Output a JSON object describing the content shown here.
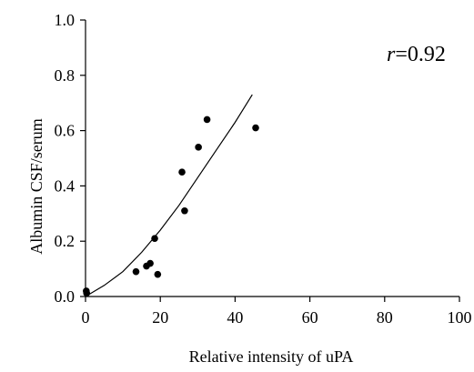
{
  "chart_data": {
    "type": "scatter",
    "xlabel": "Relative intensity of uPA",
    "ylabel": "Albumin CSF/serum",
    "xlim": [
      0,
      100
    ],
    "ylim": [
      0,
      1.0
    ],
    "x_ticks": [
      "0",
      "20",
      "40",
      "60",
      "80",
      "100"
    ],
    "y_ticks": [
      "0.0",
      "0.2",
      "0.4",
      "0.6",
      "0.8",
      "1.0"
    ],
    "grid": false,
    "annotation": {
      "italic": "r",
      "rest": "=0.92"
    },
    "points": [
      {
        "x": 0.2,
        "y": 0.02
      },
      {
        "x": 0.3,
        "y": 0.012
      },
      {
        "x": 13.5,
        "y": 0.09
      },
      {
        "x": 16.3,
        "y": 0.11
      },
      {
        "x": 17.3,
        "y": 0.12
      },
      {
        "x": 18.5,
        "y": 0.21
      },
      {
        "x": 19.3,
        "y": 0.08
      },
      {
        "x": 25.8,
        "y": 0.45
      },
      {
        "x": 26.5,
        "y": 0.31
      },
      {
        "x": 30.2,
        "y": 0.54
      },
      {
        "x": 32.5,
        "y": 0.64
      },
      {
        "x": 45.5,
        "y": 0.61
      }
    ],
    "fit_curve": [
      {
        "x": 0,
        "y": 0.0
      },
      {
        "x": 5,
        "y": 0.04
      },
      {
        "x": 10,
        "y": 0.09
      },
      {
        "x": 15,
        "y": 0.16
      },
      {
        "x": 20,
        "y": 0.24
      },
      {
        "x": 25,
        "y": 0.33
      },
      {
        "x": 30,
        "y": 0.43
      },
      {
        "x": 35,
        "y": 0.53
      },
      {
        "x": 40,
        "y": 0.63
      },
      {
        "x": 44.6,
        "y": 0.73
      }
    ]
  }
}
